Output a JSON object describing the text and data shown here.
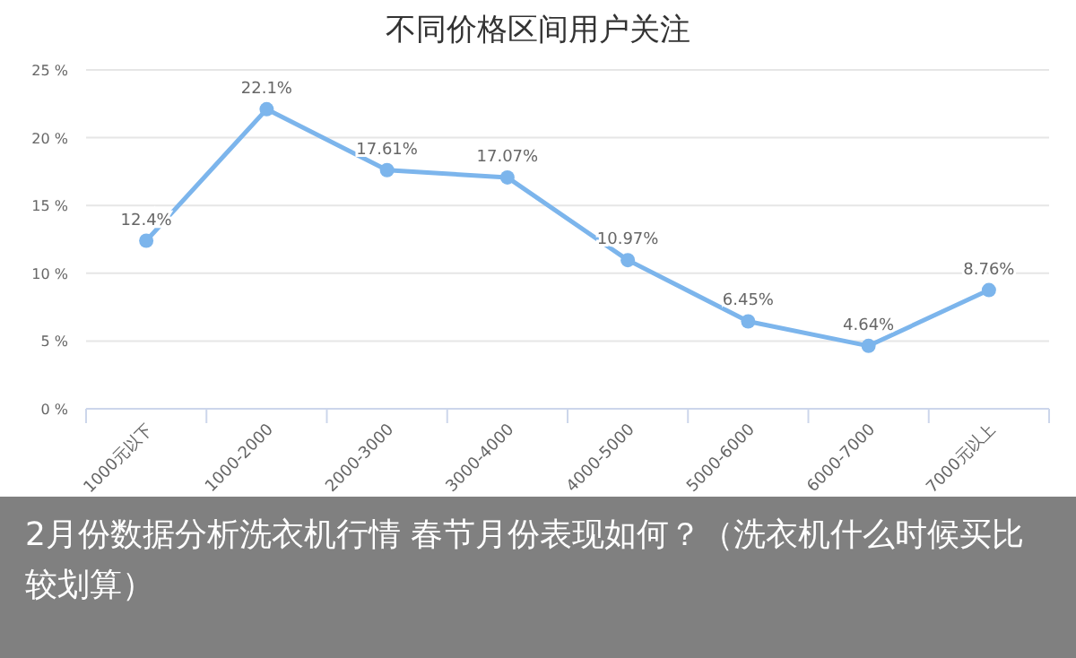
{
  "chart_data": {
    "type": "line",
    "title": "不同价格区间用户关注",
    "categories": [
      "1000元以下",
      "1000-2000",
      "2000-3000",
      "3000-4000",
      "4000-5000",
      "5000-6000",
      "6000-7000",
      "7000元以上"
    ],
    "series": [
      {
        "color": "#7cb5ec",
        "values": [
          12.4,
          22.1,
          17.61,
          17.07,
          10.97,
          6.45,
          4.64,
          8.76
        ],
        "value_labels": [
          "12.4%",
          "22.1%",
          "17.61%",
          "17.07%",
          "10.97%",
          "6.45%",
          "4.64%",
          "8.76%"
        ]
      }
    ],
    "ylim": [
      0,
      25
    ],
    "yticks": [
      {
        "value": 0,
        "label": "0 %"
      },
      {
        "value": 5,
        "label": "5 %"
      },
      {
        "value": 10,
        "label": "10 %"
      },
      {
        "value": 15,
        "label": "15 %"
      },
      {
        "value": 20,
        "label": "20 %"
      },
      {
        "value": 25,
        "label": "25 %"
      }
    ],
    "grid": "y",
    "marker": "circle",
    "annotations": [
      "2月份数据分析洗衣机行情  春节月份表现如何？（洗衣机什么时候买比较划算）"
    ]
  }
}
